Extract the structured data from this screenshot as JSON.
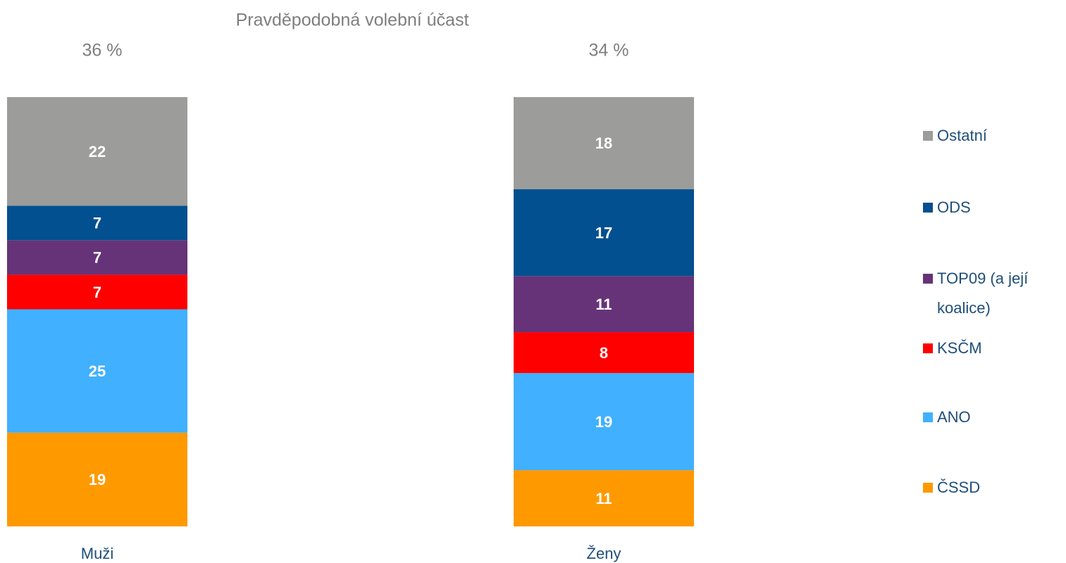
{
  "chart_data": {
    "type": "stacked_bar_100",
    "title": "Pravděpodobná volební účast",
    "categories": [
      "Muži",
      "Ženy"
    ],
    "annotations": [
      "36 %",
      "34 %"
    ],
    "series": [
      {
        "name": "ČSSD",
        "color": "#ff9900",
        "values": [
          19,
          11
        ]
      },
      {
        "name": "ANO",
        "color": "#41b0ff",
        "values": [
          25,
          19
        ]
      },
      {
        "name": "KSČM",
        "color": "#ff0000",
        "values": [
          7,
          8
        ]
      },
      {
        "name": "TOP09 (a její koalice)",
        "color": "#663378",
        "values": [
          7,
          11
        ]
      },
      {
        "name": "ODS",
        "color": "#02508f",
        "values": [
          7,
          17
        ]
      },
      {
        "name": "Ostatní",
        "color": "#9c9c9a",
        "values": [
          22,
          18
        ]
      }
    ],
    "legend": "right"
  }
}
